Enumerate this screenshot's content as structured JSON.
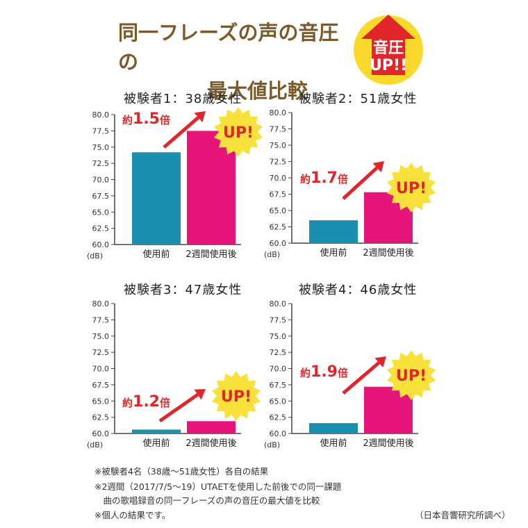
{
  "header": {
    "title_line1": "同一フレーズの声の音圧の",
    "title_line2": "最大値比較",
    "badge_line1": "音圧",
    "badge_line2": "UP!!"
  },
  "colors": {
    "before": "#1a8fb0",
    "after": "#e6157a",
    "arrow": "#e0262b",
    "burst": "#f7e13a",
    "title": "#7a5a2a"
  },
  "chart_data": [
    {
      "type": "bar",
      "title": "被験者1：38歳女性",
      "categories": [
        "使用前",
        "2週間使用後"
      ],
      "values": [
        74.2,
        77.5
      ],
      "ylim": [
        60,
        80
      ],
      "yticks": [
        "80.0",
        "77.5",
        "75.0",
        "72.5",
        "70.0",
        "67.5",
        "65.0",
        "62.5",
        "60.0"
      ],
      "ylabel": "(dB)",
      "ratio_prefix": "約",
      "ratio_value": "1.5",
      "ratio_suffix": "倍",
      "up_label": "UP!"
    },
    {
      "type": "bar",
      "title": "被験者2：51歳女性",
      "categories": [
        "使用前",
        "2週間使用後"
      ],
      "values": [
        63.5,
        67.8
      ],
      "ylim": [
        60,
        80
      ],
      "yticks": [
        "80.0",
        "77.5",
        "75.0",
        "72.5",
        "70.0",
        "67.5",
        "65.0",
        "62.5",
        "60.0"
      ],
      "ylabel": "(dB)",
      "ratio_prefix": "約",
      "ratio_value": "1.7",
      "ratio_suffix": "倍",
      "up_label": "UP!"
    },
    {
      "type": "bar",
      "title": "被験者3：47歳女性",
      "categories": [
        "使用前",
        "2週間使用後"
      ],
      "values": [
        60.6,
        61.9
      ],
      "ylim": [
        60,
        80
      ],
      "yticks": [
        "80.0",
        "77.5",
        "75.0",
        "72.5",
        "70.0",
        "67.5",
        "65.0",
        "62.5",
        "60.0"
      ],
      "ylabel": "(dB)",
      "ratio_prefix": "約",
      "ratio_value": "1.2",
      "ratio_suffix": "倍",
      "up_label": "UP!"
    },
    {
      "type": "bar",
      "title": "被験者4：46歳女性",
      "categories": [
        "使用前",
        "2週間使用後"
      ],
      "values": [
        61.6,
        67.2
      ],
      "ylim": [
        60,
        80
      ],
      "yticks": [
        "80.0",
        "77.5",
        "75.0",
        "72.5",
        "70.0",
        "67.5",
        "65.0",
        "62.5",
        "60.0"
      ],
      "ylabel": "(dB)",
      "ratio_prefix": "約",
      "ratio_value": "1.9",
      "ratio_suffix": "倍",
      "up_label": "UP!"
    }
  ],
  "footer": {
    "note1": "※被験者4名（38歳〜51歳女性）各自の結果",
    "note2": "※2週間（2017/7/5〜19）UTAETを使用した前後での同一課題",
    "note3": "　曲の歌唱録音の同一フレーズの声の音圧の最大値を比較",
    "note4": "※個人の結果です。",
    "credit": "（日本音響研究所調べ）"
  }
}
